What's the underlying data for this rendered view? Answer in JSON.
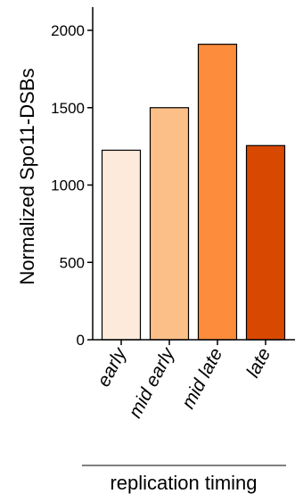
{
  "chart_data": {
    "type": "bar",
    "title": "",
    "xlabel": "replication timing",
    "ylabel": "Normalized Spo11-DSBs",
    "categories": [
      "early",
      "mid early",
      "mid late",
      "late"
    ],
    "values": [
      1225,
      1500,
      1910,
      1255
    ],
    "colors": [
      "#fdeadb",
      "#fdbf88",
      "#fd8d3c",
      "#d94801"
    ],
    "ylim": [
      0,
      2150
    ],
    "yticks": [
      0,
      500,
      1000,
      1500,
      2000
    ],
    "grid": false,
    "legend": "none"
  }
}
